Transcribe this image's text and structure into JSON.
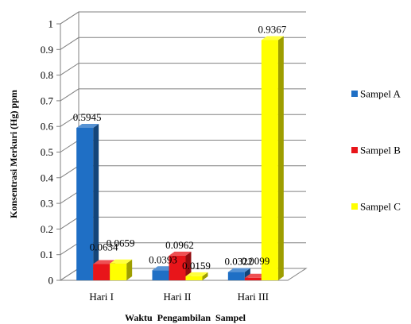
{
  "chart_data": {
    "type": "bar",
    "categories": [
      "Hari I",
      "Hari II",
      "Hari III"
    ],
    "series": [
      {
        "name": "Sampel A",
        "values": [
          0.5945,
          0.0393,
          0.0322
        ],
        "color": "#1F6FC5"
      },
      {
        "name": "Sampel B",
        "values": [
          0.0634,
          0.0962,
          0.0099
        ],
        "color": "#E8151A"
      },
      {
        "name": "Sampel C",
        "values": [
          0.0659,
          0.0159,
          0.9367
        ],
        "color": "#FFFF00"
      }
    ],
    "data_labels": [
      [
        "0.5945",
        "0.0634",
        "0.0659"
      ],
      [
        "0.0393",
        "0.0962",
        "0.0159"
      ],
      [
        "0.0322",
        "0.0099",
        "0.9367"
      ]
    ],
    "xlabel": "Waktu  Pengambilan  Sampel",
    "ylabel": "Konsentrasi  Merkuri  (Hg) ppm",
    "ylim": [
      0,
      1
    ],
    "yticks": [
      0,
      0.1,
      0.2,
      0.3,
      0.4,
      0.5,
      0.6,
      0.7,
      0.8,
      0.9,
      1
    ],
    "ytick_labels": [
      "0",
      "0.1",
      "0.2",
      "0.3",
      "0.4",
      "0.5",
      "0.6",
      "0.7",
      "0.8",
      "0.9",
      "1"
    ],
    "grid": true,
    "legend_position": "right",
    "style": "3d-column"
  }
}
